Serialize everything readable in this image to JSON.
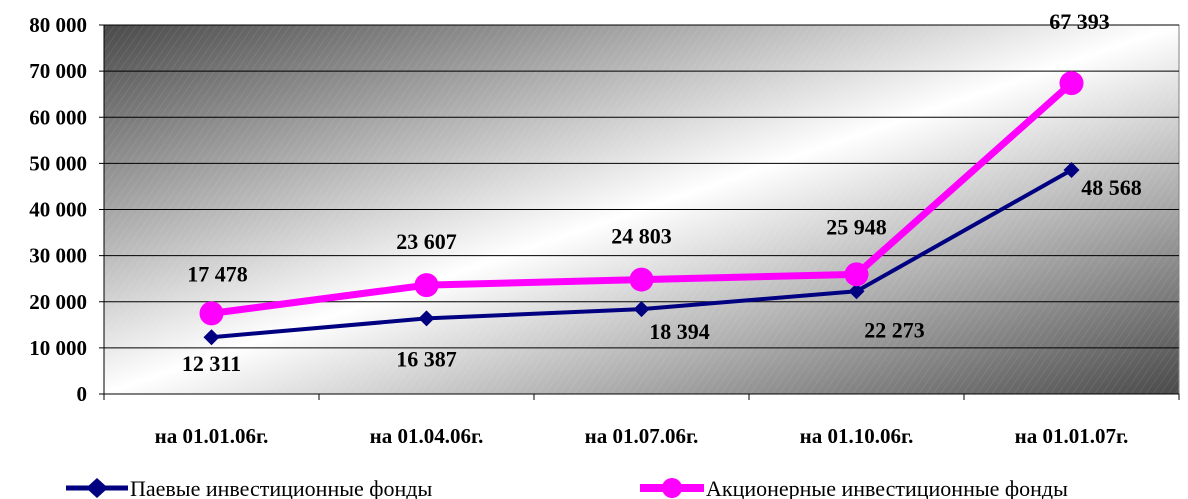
{
  "chart_data": {
    "type": "line",
    "categories": [
      "на 01.01.06г.",
      "на 01.04.06г.",
      "на 01.07.06г.",
      "на 01.10.06г.",
      "на 01.01.07г."
    ],
    "ylim": [
      0,
      80000
    ],
    "yticks": [
      0,
      10000,
      20000,
      30000,
      40000,
      50000,
      60000,
      70000,
      80000
    ],
    "ytick_labels": [
      "0",
      "10 000",
      "20 000",
      "30 000",
      "40 000",
      "50 000",
      "60 000",
      "70 000",
      "80 000"
    ],
    "grid": true,
    "legend_position": "bottom",
    "series": [
      {
        "name": "Паевые инвестиционные фонды",
        "values": [
          12311,
          16387,
          18394,
          22273,
          48568
        ],
        "value_labels": [
          "12 311",
          "16 387",
          "18 394",
          "22 273",
          "48 568"
        ],
        "color": "#000080",
        "marker": "diamond"
      },
      {
        "name": "Акционерные инвестиционные фонды",
        "values": [
          17478,
          23607,
          24803,
          25948,
          67393
        ],
        "value_labels": [
          "17 478",
          "23 607",
          "24 803",
          "25 948",
          "67 393"
        ],
        "color": "#FF00FF",
        "marker": "circle"
      }
    ]
  }
}
